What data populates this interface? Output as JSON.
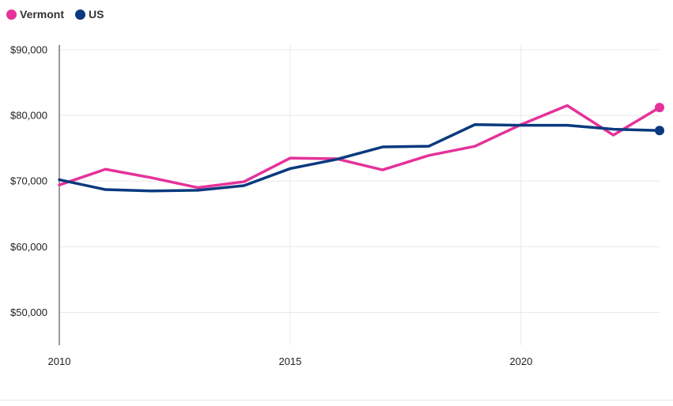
{
  "chart_data": {
    "type": "line",
    "x": [
      2010,
      2011,
      2012,
      2013,
      2014,
      2015,
      2016,
      2017,
      2018,
      2019,
      2020,
      2021,
      2022,
      2023
    ],
    "xlim": [
      2010,
      2023
    ],
    "ylim": [
      45000,
      90000
    ],
    "x_ticks": [
      2010,
      2015,
      2020
    ],
    "x_tick_labels": [
      "2010",
      "2015",
      "2020"
    ],
    "y_ticks": [
      50000,
      60000,
      70000,
      80000,
      90000
    ],
    "y_tick_labels": [
      "$50,000",
      "$60,000",
      "$70,000",
      "$80,000",
      "$90,000"
    ],
    "grid": true,
    "legend": "top-left",
    "series": [
      {
        "name": "Vermont",
        "color": "#e5329a",
        "values": [
          69400,
          71800,
          70500,
          69000,
          69900,
          73500,
          73400,
          71700,
          73900,
          75300,
          78600,
          81500,
          77000,
          81200
        ]
      },
      {
        "name": "US",
        "color": "#0a3a7e",
        "values": [
          70200,
          68700,
          68500,
          68600,
          69300,
          71900,
          73300,
          75200,
          75300,
          78600,
          78500,
          78500,
          77900,
          77700
        ]
      }
    ]
  }
}
